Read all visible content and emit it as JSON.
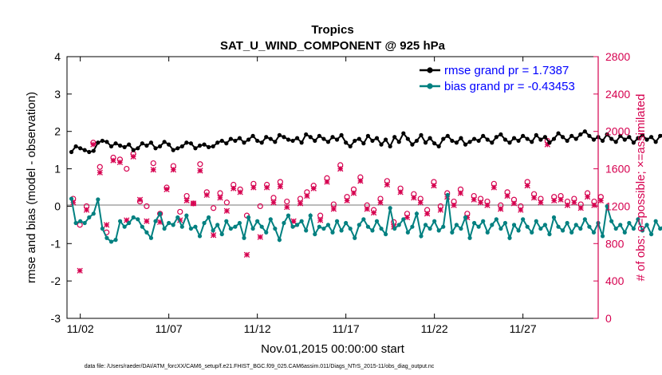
{
  "chart_data": {
    "type": "line",
    "title": "Tropics",
    "subtitle": "SAT_U_WIND_COMPONENT @ 925 hPa",
    "xlabel": "Nov.01,2015 00:00:00 start",
    "ylabel": "rmse and bias (model - observation)",
    "ylabel_right": "# of obs: o=possible; ×=assimilated",
    "footnote": "data file: /Users/raeder/DAI/ATM_forcXX/CAM6_setup/f.e21.FHIST_BGC.f09_025.CAM6assim.011/Diags_NTrS_2015-11/obs_diag_output.nc",
    "x_ticks": [
      "11/02",
      "11/07",
      "11/12",
      "11/17",
      "11/22",
      "11/27"
    ],
    "x_tick_days": [
      2,
      7,
      12,
      17,
      22,
      27
    ],
    "xlim": [
      1.25,
      31.25
    ],
    "ylim": [
      -3,
      4
    ],
    "y_ticks": [
      -3,
      -2,
      -1,
      0,
      1,
      2,
      3,
      4
    ],
    "ylim_right": [
      0,
      2800
    ],
    "y_ticks_right": [
      0,
      400,
      800,
      1200,
      1600,
      2000,
      2400,
      2800
    ],
    "grid": false,
    "legend_position": "top-right",
    "colors": {
      "rmse": "#000000",
      "bias": "#008080",
      "obs": "#d6004f",
      "zero_line": "#bbbbbb",
      "legend_text": "#0000ff",
      "axis": "#000000",
      "right_axis": "#d6004f"
    },
    "x_start": 1.5,
    "x_step": 0.25,
    "series": [
      {
        "name": "rmse grand pr = 1.7387",
        "axis": "left",
        "values": [
          1.45,
          1.6,
          1.55,
          1.5,
          1.45,
          1.48,
          1.7,
          1.75,
          1.72,
          1.6,
          1.68,
          1.62,
          1.58,
          1.65,
          1.5,
          1.55,
          1.68,
          1.62,
          1.7,
          1.55,
          1.6,
          1.72,
          1.65,
          1.5,
          1.55,
          1.6,
          1.7,
          1.68,
          1.55,
          1.62,
          1.65,
          1.58,
          1.6,
          1.7,
          1.75,
          1.68,
          1.8,
          1.75,
          1.82,
          1.7,
          1.78,
          1.88,
          1.75,
          1.7,
          1.85,
          1.8,
          1.72,
          1.9,
          1.85,
          1.78,
          1.75,
          1.82,
          1.7,
          1.92,
          1.85,
          1.75,
          1.88,
          1.8,
          1.72,
          1.85,
          1.78,
          1.9,
          1.7,
          1.6,
          1.75,
          1.8,
          1.68,
          1.88,
          1.75,
          1.82,
          1.65,
          1.78,
          1.6,
          1.85,
          1.72,
          1.95,
          1.8,
          1.65,
          1.75,
          1.9,
          1.7,
          1.82,
          1.68,
          1.6,
          1.8,
          1.88,
          1.75,
          1.7,
          1.82,
          1.65,
          1.72,
          1.8,
          1.75,
          1.88,
          1.78,
          1.7,
          1.85,
          1.92,
          1.78,
          1.7,
          1.82,
          1.75,
          1.88,
          1.8,
          1.72,
          1.9,
          1.78,
          1.85,
          1.7,
          1.8,
          1.95,
          1.85,
          1.75,
          1.88,
          1.8,
          1.92,
          2.0,
          1.88,
          1.78,
          1.85,
          1.75,
          1.92,
          1.8,
          1.72,
          1.88,
          1.78,
          1.85,
          1.7,
          1.82,
          1.9,
          1.78,
          1.85,
          1.72,
          1.88,
          1.95,
          1.8,
          1.75,
          1.9,
          1.82,
          1.78,
          1.88,
          1.8,
          1.75,
          1.85,
          1.7,
          1.78,
          1.72,
          1.65,
          1.75,
          1.68,
          1.72,
          1.62,
          1.75,
          1.7,
          1.8,
          1.75,
          1.8,
          1.7,
          1.62,
          1.75,
          1.8,
          1.88,
          1.85,
          1.95,
          1.9,
          1.98,
          1.92,
          2.0
        ]
      },
      {
        "name": "bias grand pr = -0.43453",
        "axis": "left",
        "values": [
          0.2,
          -0.45,
          -0.4,
          -0.45,
          -0.3,
          -0.2,
          0.18,
          -0.6,
          -0.85,
          -0.95,
          -0.9,
          -0.4,
          -0.55,
          -0.45,
          -0.3,
          -0.35,
          -0.55,
          -0.7,
          -0.85,
          -0.4,
          -0.2,
          -0.6,
          -0.45,
          -0.5,
          -0.3,
          -0.55,
          -0.25,
          -0.6,
          -0.55,
          -0.8,
          -0.45,
          -0.3,
          -0.65,
          -0.5,
          -0.75,
          -0.4,
          -0.6,
          -0.55,
          -0.45,
          -0.85,
          -0.3,
          -0.6,
          -0.4,
          -0.55,
          -0.7,
          -0.35,
          -0.6,
          -0.9,
          -0.45,
          -0.25,
          -0.55,
          -0.5,
          -0.4,
          -0.65,
          -0.25,
          -0.75,
          -0.55,
          -0.6,
          -0.5,
          -0.7,
          -0.4,
          -0.65,
          -0.45,
          -0.6,
          -0.85,
          -0.5,
          -0.35,
          -0.55,
          -0.65,
          -0.4,
          -0.6,
          -0.75,
          -0.05,
          -0.6,
          -0.5,
          -0.35,
          -0.7,
          -0.55,
          -0.2,
          -0.8,
          -0.5,
          -0.6,
          -0.4,
          -0.65,
          -0.55,
          0.3,
          -0.7,
          -0.5,
          -0.6,
          -0.3,
          -0.85,
          -0.45,
          -0.55,
          -0.4,
          -0.7,
          -0.5,
          -0.35,
          -0.6,
          -0.45,
          -0.85,
          -0.5,
          -0.65,
          -0.35,
          -0.55,
          -0.7,
          -0.4,
          -0.6,
          -0.5,
          -0.75,
          -0.3,
          -0.55,
          -0.65,
          -0.45,
          -0.7,
          -0.5,
          -0.6,
          -0.35,
          -0.55,
          -0.7,
          -0.45,
          -0.8,
          0.0,
          -0.4,
          -0.6,
          -0.5,
          -0.7,
          -0.45,
          -0.6,
          -0.35,
          -0.65,
          -0.5,
          -0.75,
          -0.4,
          -0.6,
          -0.5,
          -0.55,
          -0.7,
          -0.45,
          -0.6,
          -0.4,
          -0.55,
          -0.65,
          -0.5,
          -0.35,
          -0.6,
          -0.45,
          -0.55,
          -0.3,
          -0.4,
          -0.6,
          -0.5,
          -0.45,
          -0.55,
          -0.35,
          -0.5,
          -0.4,
          -0.45,
          -0.3,
          -0.4,
          -0.5,
          -0.3,
          -0.45,
          -0.25,
          -0.35,
          -0.3,
          -0.45
        ]
      },
      {
        "name": "# of obs possible",
        "axis": "right",
        "marker": "o",
        "values": [
          1280,
          1000,
          1200,
          1880,
          1620,
          920,
          1720,
          1700,
          1600,
          1760,
          1250,
          1200,
          1660,
          1120,
          1400,
          1630,
          1140,
          1310,
          1230,
          1650,
          1350,
          1180,
          1340,
          1240,
          1430,
          1380,
          1100,
          1440,
          1200,
          1430,
          1290,
          1460,
          1250,
          1000,
          1280,
          1350,
          1420,
          1100,
          1500,
          1220,
          1640,
          1300,
          1380,
          1510,
          1210,
          1160,
          1280,
          1470,
          1030,
          1390,
          1120,
          1330,
          1280,
          1160,
          1460,
          1200,
          1340,
          1250,
          1380,
          1120,
          1310,
          1280,
          1250,
          1440,
          1210,
          1350,
          1270,
          1200,
          1460,
          1330,
          1280,
          1900,
          1300,
          1310,
          1250,
          1280,
          1220,
          1340,
          1250,
          1300
        ]
      },
      {
        "name": "# of obs assimilated",
        "axis": "right",
        "marker": "x",
        "values": [
          1240,
          510,
          1160,
          1860,
          1560,
          1000,
          1690,
          1670,
          1050,
          1730,
          1270,
          1040,
          1590,
          1030,
          1380,
          1590,
          1050,
          1260,
          1230,
          1580,
          1320,
          890,
          1290,
          1150,
          1390,
          1350,
          680,
          1400,
          870,
          1400,
          1240,
          1410,
          1190,
          1040,
          1230,
          1310,
          1390,
          1050,
          1460,
          1170,
          1600,
          1260,
          1340,
          1470,
          1170,
          1130,
          1240,
          1430,
          980,
          1350,
          1080,
          1290,
          1240,
          1120,
          1420,
          1160,
          1300,
          1210,
          1340,
          1080,
          1270,
          1240,
          1210,
          1400,
          1170,
          1310,
          1230,
          1160,
          1420,
          1290,
          1240,
          1860,
          1260,
          1270,
          1210,
          1240,
          1180,
          1300,
          1210,
          1260
        ]
      }
    ]
  }
}
